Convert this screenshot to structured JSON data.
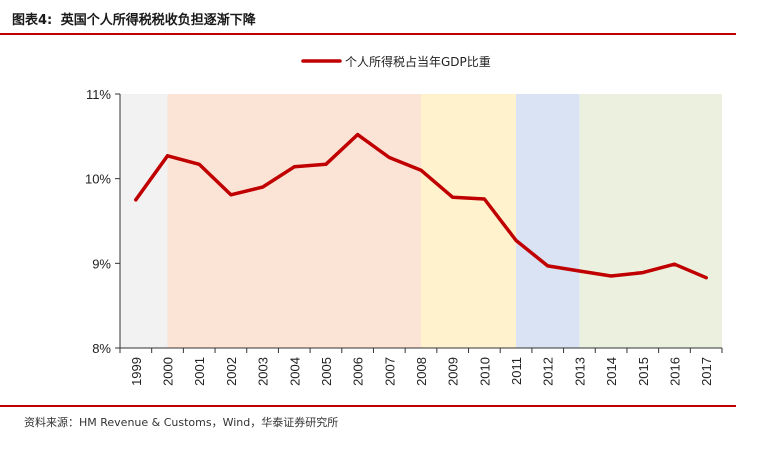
{
  "figure": {
    "label": "图表4:",
    "title": "英国个人所得税税收负担逐渐下降"
  },
  "source": "资料来源：HM Revenue & Customs，Wind，华泰证券研究所",
  "colors": {
    "line": "#c00000",
    "rule": "#c00000",
    "band_gray": "#f2f2f2",
    "band_pink": "#fbe3d6",
    "band_yellow": "#fff2cc",
    "band_blue": "#dae3f3",
    "band_green": "#ebf1de"
  },
  "chart_data": {
    "type": "line",
    "title": "",
    "xlabel": "",
    "ylabel": "",
    "x": [
      "1999",
      "2000",
      "2001",
      "2002",
      "2003",
      "2004",
      "2005",
      "2006",
      "2007",
      "2008",
      "2009",
      "2010",
      "2011",
      "2012",
      "2013",
      "2014",
      "2015",
      "2016",
      "2017"
    ],
    "series": [
      {
        "name": "个人所得税占当年GDP比重",
        "values": [
          9.75,
          10.27,
          10.17,
          9.81,
          9.9,
          10.14,
          10.17,
          10.52,
          10.25,
          10.1,
          9.78,
          9.76,
          9.27,
          8.97,
          8.91,
          8.85,
          8.89,
          8.99,
          8.83
        ]
      }
    ],
    "ylim": [
      8,
      11
    ],
    "yticks": [
      "8%",
      "9%",
      "10%",
      "11%"
    ],
    "bands": [
      {
        "from": 1999,
        "to": 2000,
        "color": "band_gray"
      },
      {
        "from": 2000,
        "to": 2008,
        "color": "band_pink"
      },
      {
        "from": 2008,
        "to": 2011,
        "color": "band_yellow"
      },
      {
        "from": 2011,
        "to": 2013,
        "color": "band_blue"
      },
      {
        "from": 2013,
        "to": 2018,
        "color": "band_green"
      }
    ],
    "legend_position": "top-center"
  }
}
